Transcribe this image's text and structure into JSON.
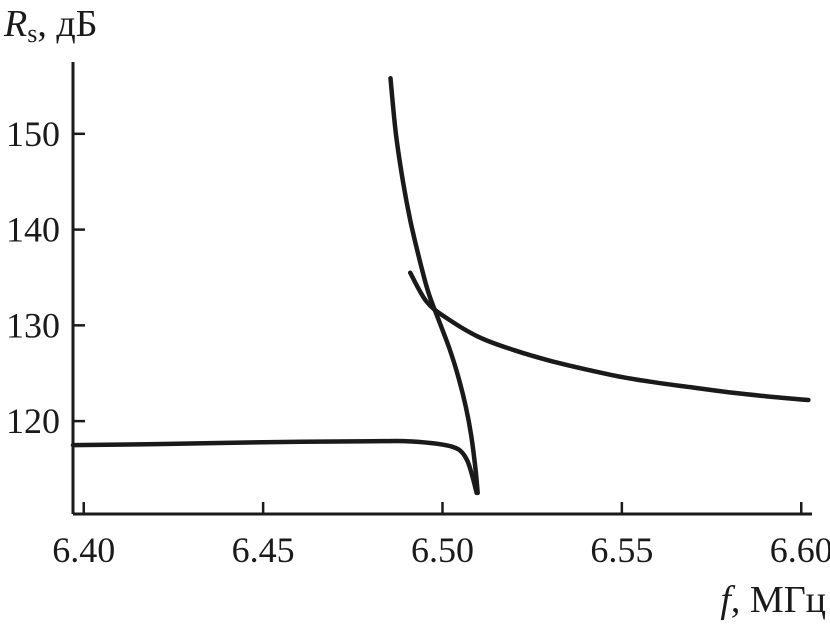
{
  "chart_data": {
    "type": "line",
    "title": "",
    "ylabel": {
      "symbol": "R",
      "subscript": "s",
      "unit": ", дБ"
    },
    "xlabel": {
      "symbol": "f",
      "unit": ", МГц"
    },
    "xlim": [
      6.397,
      6.603
    ],
    "ylim": [
      110.3,
      157.5
    ],
    "x_ticks": [
      6.4,
      6.45,
      6.5,
      6.55,
      6.6
    ],
    "x_tick_labels": [
      "6.40",
      "6.45",
      "6.50",
      "6.55",
      "6.60"
    ],
    "y_ticks": [
      120,
      130,
      140,
      150
    ],
    "y_tick_labels": [
      "120",
      "130",
      "140",
      "150"
    ],
    "grid": false,
    "series": [
      {
        "points": [
          [
            6.397,
            117.5
          ],
          [
            6.42,
            117.6
          ],
          [
            6.45,
            117.8
          ],
          [
            6.48,
            117.9
          ],
          [
            6.49,
            117.9
          ],
          [
            6.497,
            117.7
          ],
          [
            6.502,
            117.4
          ],
          [
            6.505,
            116.9
          ],
          [
            6.507,
            115.8
          ],
          [
            6.5085,
            114.0
          ],
          [
            6.5095,
            112.5
          ]
        ]
      },
      {
        "points": [
          [
            6.4855,
            155.8
          ],
          [
            6.487,
            150.0
          ],
          [
            6.489,
            145.0
          ],
          [
            6.491,
            141.0
          ],
          [
            6.4935,
            137.0
          ],
          [
            6.496,
            133.5
          ],
          [
            6.499,
            130.5
          ],
          [
            6.502,
            127.5
          ],
          [
            6.5045,
            124.5
          ],
          [
            6.5065,
            121.5
          ],
          [
            6.508,
            118.5
          ],
          [
            6.5092,
            115.0
          ],
          [
            6.5098,
            112.5
          ]
        ]
      },
      {
        "points": [
          [
            6.491,
            135.5
          ],
          [
            6.4955,
            132.5
          ],
          [
            6.501,
            130.8
          ],
          [
            6.51,
            128.8
          ],
          [
            6.52,
            127.4
          ],
          [
            6.53,
            126.3
          ],
          [
            6.54,
            125.4
          ],
          [
            6.55,
            124.6
          ],
          [
            6.56,
            124.0
          ],
          [
            6.57,
            123.5
          ],
          [
            6.58,
            123.0
          ],
          [
            6.59,
            122.6
          ],
          [
            6.602,
            122.2
          ]
        ]
      }
    ]
  }
}
